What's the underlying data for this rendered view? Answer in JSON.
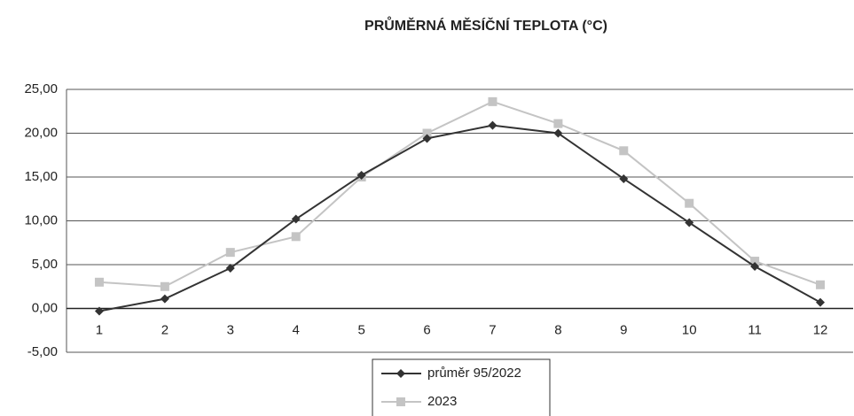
{
  "chart_data": {
    "type": "line",
    "title": "PRŮMĚRNÁ MĚSÍČNÍ TEPLOTA (°C)",
    "categories": [
      "1",
      "2",
      "3",
      "4",
      "5",
      "6",
      "7",
      "8",
      "9",
      "10",
      "11",
      "12"
    ],
    "series": [
      {
        "name": "průměr 95/2022",
        "color": "#333333",
        "marker": "diamond",
        "values": [
          -0.3,
          1.1,
          4.6,
          10.2,
          15.2,
          19.4,
          20.9,
          20.0,
          14.8,
          9.8,
          4.8,
          0.7
        ]
      },
      {
        "name": "2023",
        "color": "#c4c4c4",
        "marker": "square",
        "values": [
          3.0,
          2.5,
          6.4,
          8.2,
          15.0,
          20.0,
          23.6,
          21.1,
          18.0,
          12.0,
          5.4,
          2.7
        ]
      }
    ],
    "ylim": [
      -5,
      25
    ],
    "yticks": [
      {
        "value": -5,
        "label": "-5,00"
      },
      {
        "value": 0,
        "label": "0,00"
      },
      {
        "value": 5,
        "label": "5,00"
      },
      {
        "value": 10,
        "label": "10,00"
      },
      {
        "value": 15,
        "label": "15,00"
      },
      {
        "value": 20,
        "label": "20,00"
      },
      {
        "value": 25,
        "label": "25,00"
      }
    ],
    "grid": true,
    "legend": "bottom"
  }
}
